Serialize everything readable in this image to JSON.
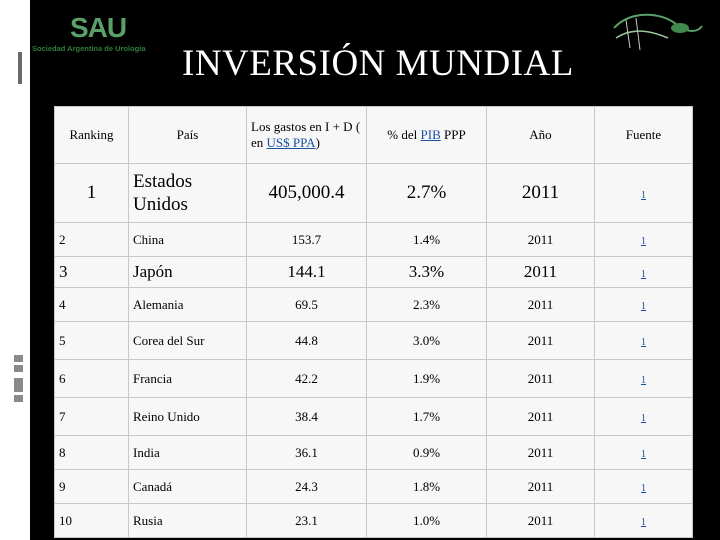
{
  "logo": {
    "mark": "SAU",
    "subtitle": "Sociedad Argentina de Urología"
  },
  "title": "INVERSIÓN MUNDIAL",
  "table": {
    "headers": {
      "ranking": "Ranking",
      "pais": "País",
      "gastos_prefix": "Los gastos en I + D ( en ",
      "gastos_link": "US$ PPA",
      "gastos_suffix": ")",
      "pib_prefix": "% del ",
      "pib_link": "PIB",
      "pib_suffix": " PPP",
      "anio": "Año",
      "fuente": "Fuente"
    },
    "rows": [
      {
        "rank": "1",
        "pais": "Estados Unidos",
        "gasto": "405,000.4",
        "pib": "2.7%",
        "anio": "2011",
        "fuente": "1"
      },
      {
        "rank": "2",
        "pais": "China",
        "gasto": "153.7",
        "pib": "1.4%",
        "anio": "2011",
        "fuente": "1"
      },
      {
        "rank": "3",
        "pais": "Japón",
        "gasto": "144.1",
        "pib": "3.3%",
        "anio": "2011",
        "fuente": "1"
      },
      {
        "rank": "4",
        "pais": "Alemania",
        "gasto": "69.5",
        "pib": "2.3%",
        "anio": "2011",
        "fuente": "1"
      },
      {
        "rank": "5",
        "pais": "Corea del Sur",
        "gasto": "44.8",
        "pib": "3.0%",
        "anio": "2011",
        "fuente": "1"
      },
      {
        "rank": "6",
        "pais": "Francia",
        "gasto": "42.2",
        "pib": "1.9%",
        "anio": "2011",
        "fuente": "1"
      },
      {
        "rank": "7",
        "pais": "Reino Unido",
        "gasto": "38.4",
        "pib": "1.7%",
        "anio": "2011",
        "fuente": "1"
      },
      {
        "rank": "8",
        "pais": "India",
        "gasto": "36.1",
        "pib": "0.9%",
        "anio": "2011",
        "fuente": "1"
      },
      {
        "rank": "9",
        "pais": "Canadá",
        "gasto": "24.3",
        "pib": "1.8%",
        "anio": "2011",
        "fuente": "1"
      },
      {
        "rank": "10",
        "pais": "Rusia",
        "gasto": "23.1",
        "pib": "1.0%",
        "anio": "2011",
        "fuente": "1"
      }
    ]
  },
  "colors": {
    "background": "#000000",
    "table_bg": "#f7f7f7",
    "link": "#1a4fa0",
    "logo_green": "#5aa06a"
  }
}
